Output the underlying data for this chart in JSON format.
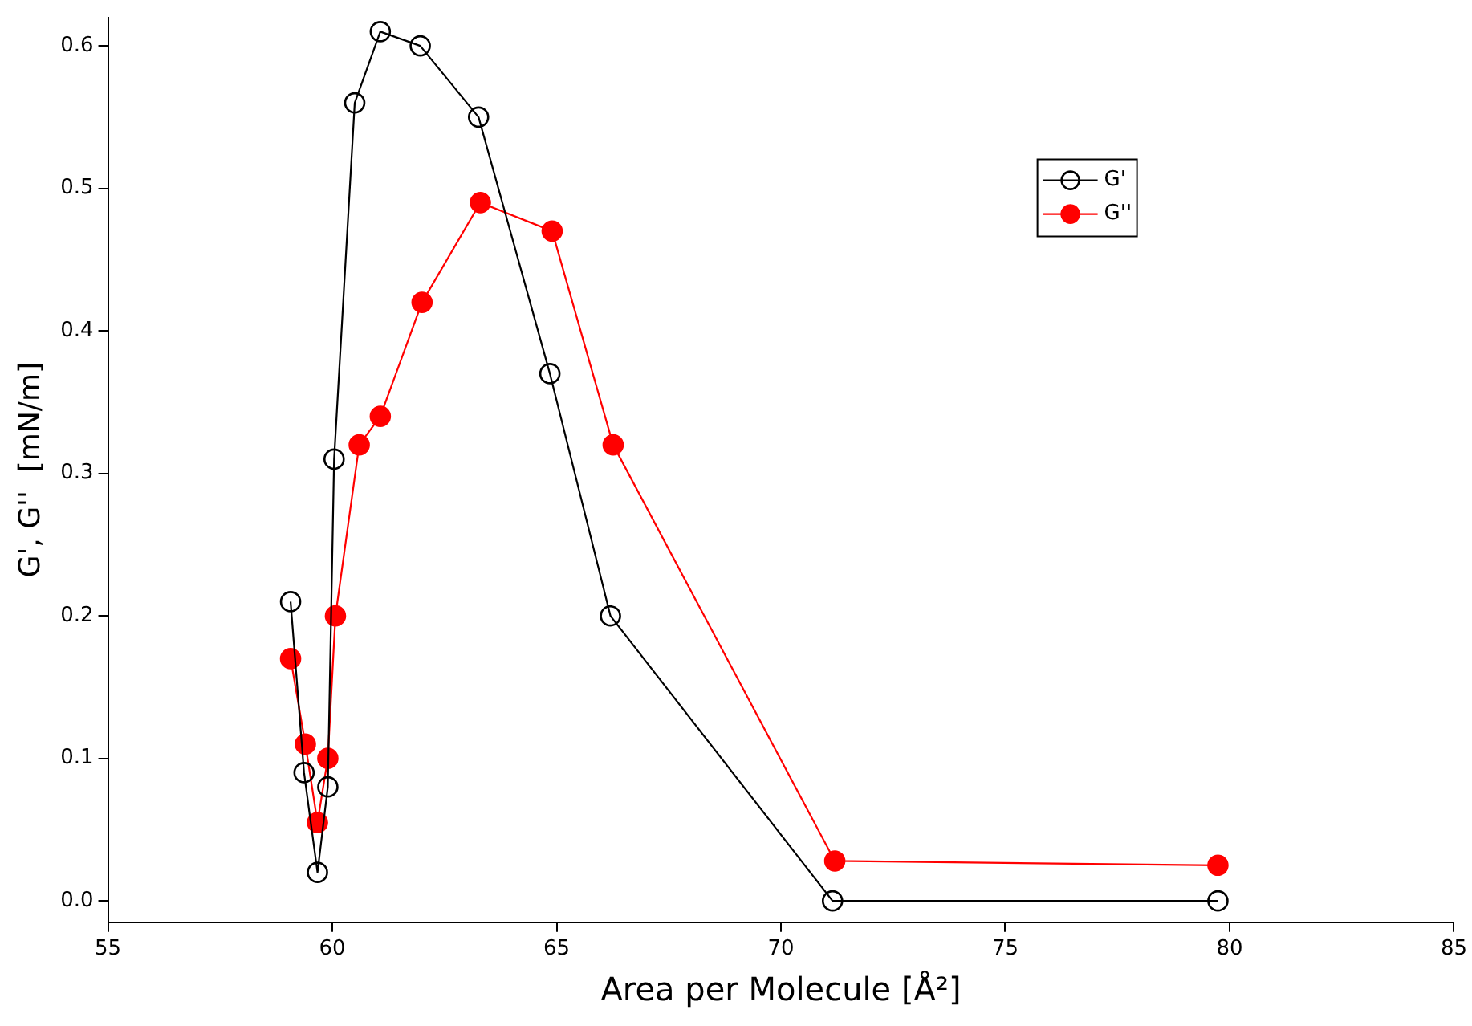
{
  "chart_data": {
    "type": "line",
    "xlabel": "Area per Molecule [Å²]",
    "ylabel": "G', G''  [mN/m]",
    "xlim": [
      55,
      85
    ],
    "xticks": [
      55,
      60,
      65,
      70,
      75,
      80,
      85
    ],
    "ylim": [
      -0.015,
      0.62
    ],
    "yticks": [
      {
        "value": 0,
        "label": "0.0"
      },
      0.1,
      0.2,
      0.3,
      0.4,
      0.5,
      0.6
    ],
    "grid": false,
    "legend": "top right",
    "marker": "circle",
    "series": [
      {
        "name": "G'",
        "color": "#000000",
        "x": [
          59.07,
          59.37,
          59.67,
          59.9,
          60.04,
          60.5,
          61.07,
          61.96,
          63.26,
          64.85,
          66.2,
          71.15,
          79.74
        ],
        "values": [
          0.21,
          0.09,
          0.02,
          0.08,
          0.31,
          0.56,
          0.61,
          0.6,
          0.55,
          0.37,
          0.2,
          0.0,
          0.0
        ]
      },
      {
        "name": "G''",
        "color": "#ff0000",
        "x": [
          59.07,
          59.4,
          59.67,
          59.9,
          60.07,
          60.6,
          61.07,
          62.0,
          63.3,
          64.9,
          66.26,
          71.2,
          79.74
        ],
        "values": [
          0.17,
          0.11,
          0.055,
          0.1,
          0.2,
          0.32,
          0.34,
          0.42,
          0.49,
          0.47,
          0.32,
          0.028,
          0.025
        ]
      }
    ]
  }
}
